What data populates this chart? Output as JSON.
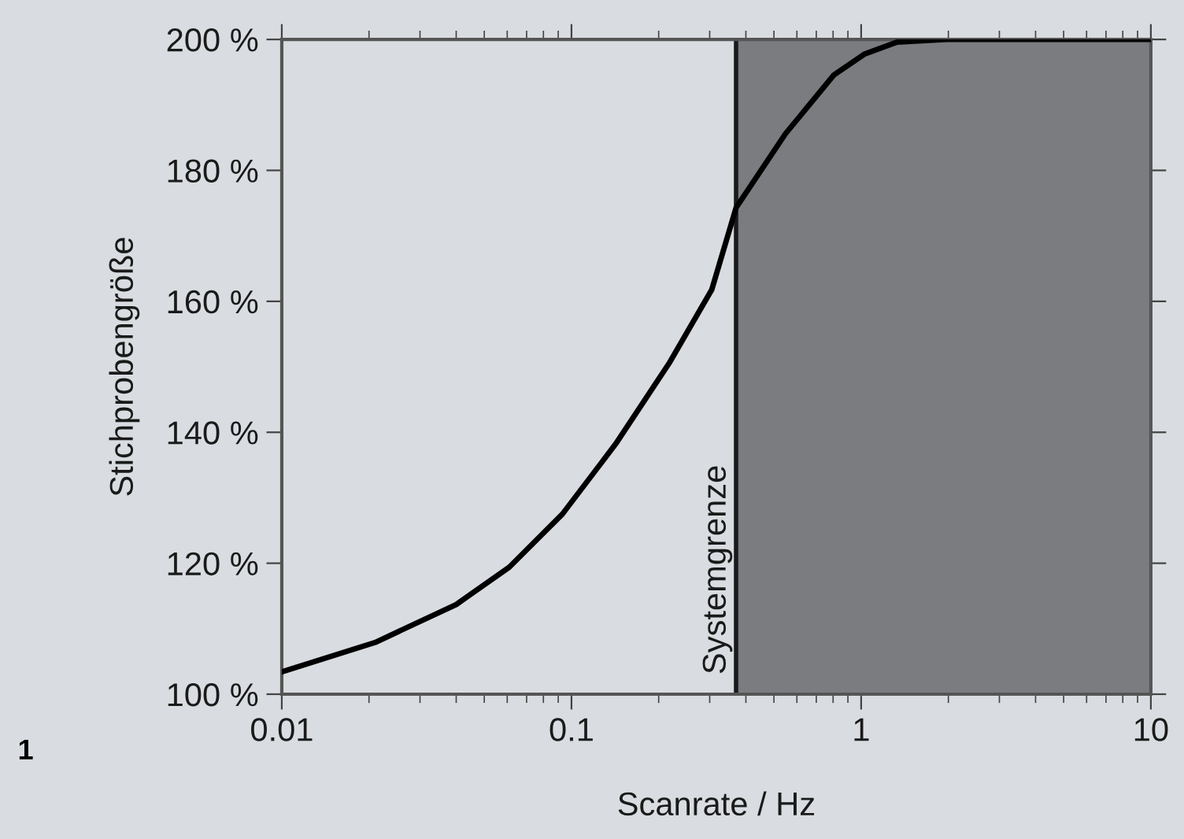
{
  "chart_data": {
    "type": "line",
    "xlabel": "Scanrate / Hz",
    "ylabel": "Stichprobengröße",
    "log": "x",
    "xlim": [
      0.01,
      10
    ],
    "xticks": [
      0.01,
      0.1,
      1,
      10
    ],
    "ylim": [
      100,
      200
    ],
    "yticks": [
      {
        "value": 100,
        "label": "100 %"
      },
      {
        "value": 120,
        "label": "120 %"
      },
      {
        "value": 140,
        "label": "140 %"
      },
      {
        "value": 160,
        "label": "160 %"
      },
      {
        "value": 180,
        "label": "180 %"
      },
      {
        "value": 200,
        "label": "200 %"
      }
    ],
    "grid": false,
    "legend": false,
    "marker": "none",
    "line_style": "solid",
    "series": [
      {
        "color": "#000000",
        "x": [
          0.01,
          0.021,
          0.04,
          0.061,
          0.093,
          0.142,
          0.217,
          0.305,
          0.37,
          0.548,
          0.806,
          1.03,
          1.33,
          1.97,
          5,
          10
        ],
        "values": [
          103.4,
          107.9,
          113.7,
          119.4,
          127.5,
          138.2,
          150.5,
          161.8,
          174.3,
          185.6,
          194.6,
          197.8,
          199.6,
          200,
          200,
          200
        ]
      }
    ],
    "bands": [
      {
        "axis": "x",
        "from": 0.37,
        "to": 10,
        "color": "#7a7c80"
      }
    ],
    "ref_lines": [
      {
        "axis": "x",
        "value": 0.37,
        "label": "Systemgrenze",
        "color": "#1a1a1a",
        "line_style": "solid"
      }
    ],
    "annotations": [
      "1"
    ]
  }
}
